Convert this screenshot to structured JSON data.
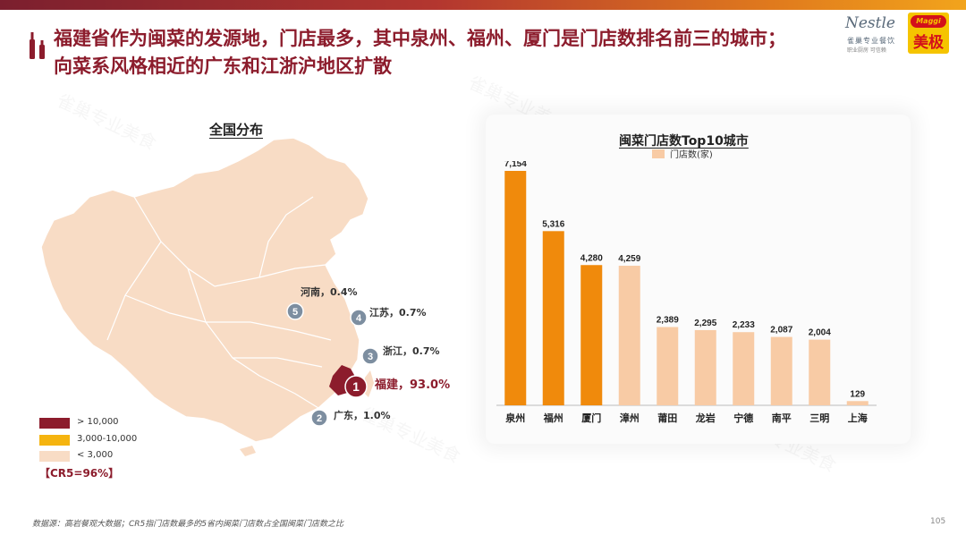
{
  "title": {
    "line1": "福建省作为闽菜的发源地，门店最多，其中泉州、福州、厦门是门店数排名前三的城市；",
    "line2": "向菜系风格相近的广东和江浙沪地区扩散"
  },
  "logo": {
    "brand": "Nestle",
    "sub1": "雀巢专业餐饮",
    "sub2": "职业厨房 可信赖",
    "maggi_top": "Maggi",
    "maggi_name": "美极"
  },
  "watermark": "雀巢专业美食",
  "map": {
    "title": "全国分布",
    "markers": [
      {
        "rank": "1",
        "label": "福建，93.0%"
      },
      {
        "rank": "2",
        "label": "广东，1.0%"
      },
      {
        "rank": "3",
        "label": "浙江，0.7%"
      },
      {
        "rank": "4",
        "label": "江苏，0.7%"
      },
      {
        "rank": "5",
        "label": "河南，0.4%"
      }
    ],
    "legend": [
      {
        "label": "> 10,000",
        "color": "#8c1c2c"
      },
      {
        "label": "3,000-10,000",
        "color": "#f5b40f"
      },
      {
        "label": "< 3,000",
        "color": "#f8dcc5"
      }
    ],
    "cr5": "【CR5=96%】"
  },
  "chart_data": {
    "type": "bar",
    "title": "闽菜门店数Top10城市",
    "series_name": "门店数(家)",
    "categories": [
      "泉州",
      "福州",
      "厦门",
      "漳州",
      "莆田",
      "龙岩",
      "宁德",
      "南平",
      "三明",
      "上海"
    ],
    "values": [
      7154,
      5316,
      4280,
      4259,
      2389,
      2295,
      2233,
      2087,
      2004,
      129
    ],
    "value_labels": [
      "7,154",
      "5,316",
      "4,280",
      "4,259",
      "2,389",
      "2,295",
      "2,233",
      "2,087",
      "2,004",
      "129"
    ],
    "highlight_count": 3,
    "colors": {
      "highlight": "#f08a0c",
      "normal": "#f8cba5"
    },
    "ylim": [
      0,
      7154
    ]
  },
  "footer": {
    "source": "数据源：高岩餐观大数据；CR5指门店数最多的5省内闽菜门店数占全国闽菜门店数之比",
    "page": "105"
  }
}
